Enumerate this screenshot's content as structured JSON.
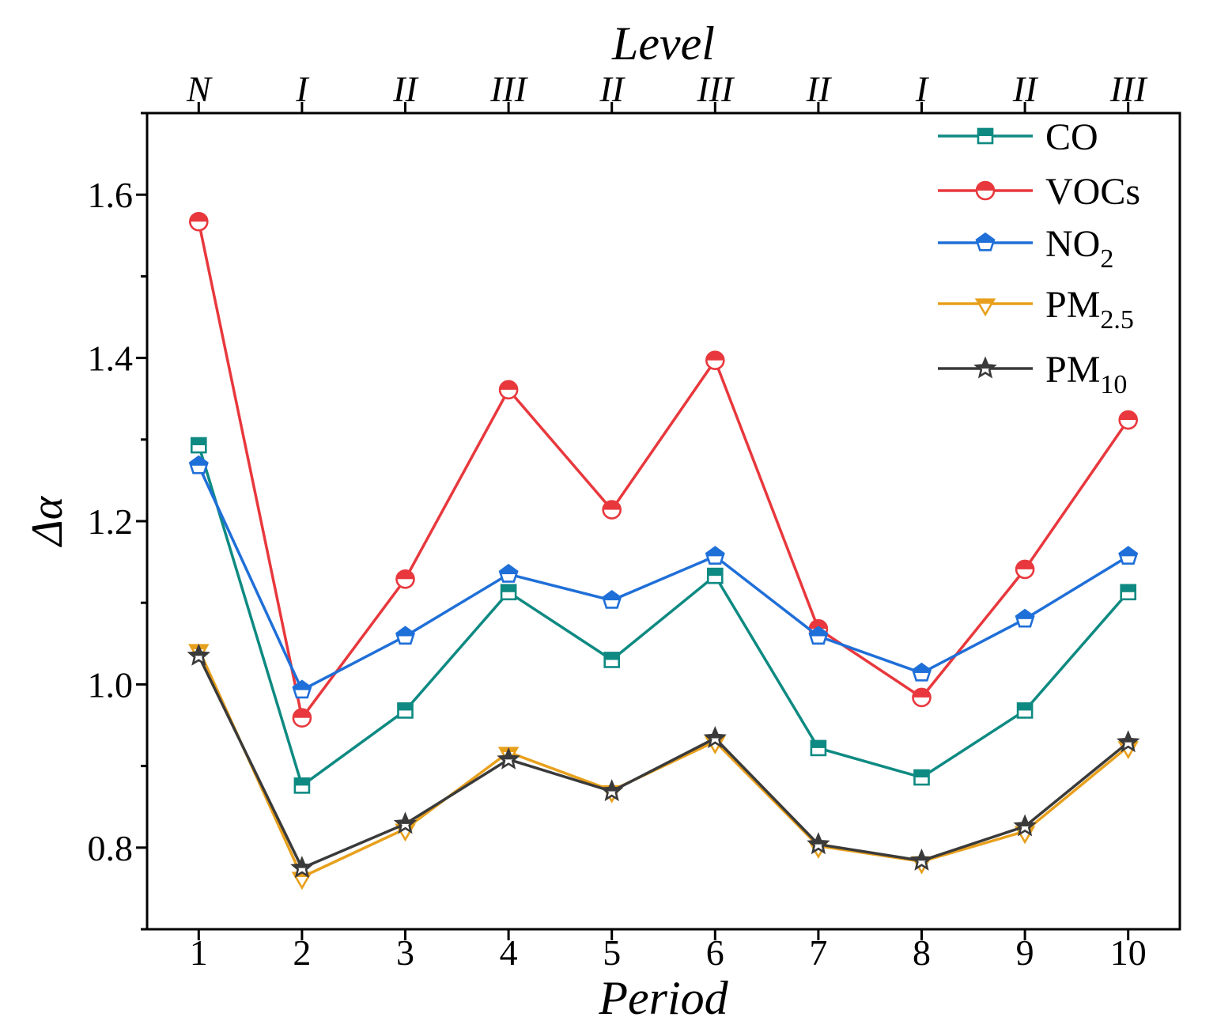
{
  "chart_data": {
    "type": "line",
    "xlabel": "Period",
    "ylabel": "Δα",
    "top_axis_title": "Level",
    "top_tick_labels": [
      "N",
      "I",
      "II",
      "III",
      "II",
      "III",
      "II",
      "I",
      "II",
      "III"
    ],
    "x": [
      1,
      2,
      3,
      4,
      5,
      6,
      7,
      8,
      9,
      10
    ],
    "xlim": [
      0.5,
      10.5
    ],
    "ylim": [
      0.7,
      1.7
    ],
    "yticks": [
      "0.8",
      "1.0",
      "1.2",
      "1.4",
      "1.6"
    ],
    "grid": false,
    "legend_position": "top-right",
    "series": [
      {
        "key": "co",
        "name": "CO",
        "name_sub": "",
        "color": "#0e8a82",
        "marker": "square",
        "values": [
          1.293,
          0.876,
          0.968,
          1.113,
          1.03,
          1.133,
          0.922,
          0.886,
          0.968,
          1.113
        ]
      },
      {
        "key": "vocs",
        "name": "VOCs",
        "name_sub": "",
        "color": "#e8383d",
        "marker": "circle",
        "values": [
          1.567,
          0.959,
          1.129,
          1.361,
          1.214,
          1.397,
          1.068,
          0.984,
          1.141,
          1.324
        ]
      },
      {
        "key": "no2",
        "name": "NO",
        "name_sub": "2",
        "color": "#1f6fd8",
        "marker": "pentagon",
        "values": [
          1.268,
          0.993,
          1.059,
          1.135,
          1.103,
          1.157,
          1.059,
          1.014,
          1.08,
          1.157
        ]
      },
      {
        "key": "pm25",
        "name": "PM",
        "name_sub": "2.5",
        "color": "#e8a01c",
        "marker": "triangle-down",
        "values": [
          1.043,
          0.764,
          0.823,
          0.917,
          0.87,
          0.93,
          0.802,
          0.783,
          0.82,
          0.924
        ]
      },
      {
        "key": "pm10",
        "name": "PM",
        "name_sub": "10",
        "color": "#3a3a3a",
        "marker": "star",
        "values": [
          1.035,
          0.775,
          0.829,
          0.908,
          0.869,
          0.934,
          0.804,
          0.784,
          0.826,
          0.929
        ]
      }
    ]
  }
}
